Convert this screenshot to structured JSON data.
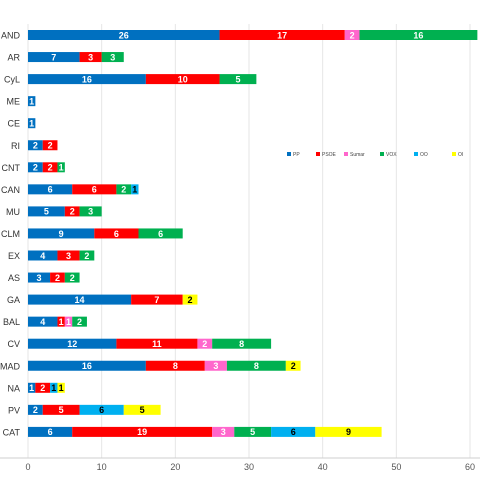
{
  "chart_data": {
    "type": "bar",
    "orientation": "horizontal",
    "stacked": true,
    "title": "",
    "xlabel": "",
    "ylabel": "",
    "xlim": [
      0,
      60
    ],
    "xticks": [
      0,
      10,
      20,
      30,
      40,
      50,
      60
    ],
    "grid": true,
    "legend_position": "right",
    "categories": [
      "AND",
      "AR",
      "CyL",
      "ME",
      "CE",
      "RI",
      "CNT",
      "CAN",
      "MU",
      "CLM",
      "EX",
      "AS",
      "GA",
      "BAL",
      "CV",
      "MAD",
      "NA",
      "PV",
      "CAT"
    ],
    "series": [
      {
        "name": "PP",
        "color": "#0070C0",
        "label_color": "#ffffff",
        "values": [
          26,
          7,
          16,
          1,
          1,
          2,
          2,
          6,
          5,
          9,
          4,
          3,
          14,
          4,
          12,
          16,
          1,
          2,
          6
        ]
      },
      {
        "name": "PSOE",
        "color": "#FF0000",
        "label_color": "#ffffff",
        "values": [
          17,
          3,
          10,
          0,
          0,
          2,
          2,
          6,
          2,
          6,
          3,
          2,
          7,
          1,
          11,
          8,
          2,
          5,
          19
        ]
      },
      {
        "name": "Sumar",
        "color": "#FF66CC",
        "label_color": "#ffffff",
        "values": [
          2,
          0,
          0,
          0,
          0,
          0,
          0,
          0,
          0,
          0,
          0,
          0,
          0,
          1,
          2,
          3,
          0,
          0,
          3
        ]
      },
      {
        "name": "VOX",
        "color": "#00B050",
        "label_color": "#ffffff",
        "values": [
          16,
          3,
          5,
          0,
          0,
          0,
          1,
          2,
          3,
          6,
          2,
          2,
          0,
          2,
          8,
          8,
          0,
          0,
          5
        ]
      },
      {
        "name": "OO",
        "color": "#00B0F0",
        "label_color": "#000000",
        "values": [
          0,
          0,
          0,
          0,
          0,
          0,
          0,
          1,
          0,
          0,
          0,
          0,
          0,
          0,
          0,
          0,
          1,
          6,
          6
        ]
      },
      {
        "name": "OI",
        "color": "#FFFF00",
        "label_color": "#000000",
        "values": [
          0,
          0,
          0,
          0,
          0,
          0,
          0,
          0,
          0,
          0,
          0,
          0,
          2,
          0,
          0,
          2,
          1,
          5,
          9
        ]
      }
    ]
  }
}
